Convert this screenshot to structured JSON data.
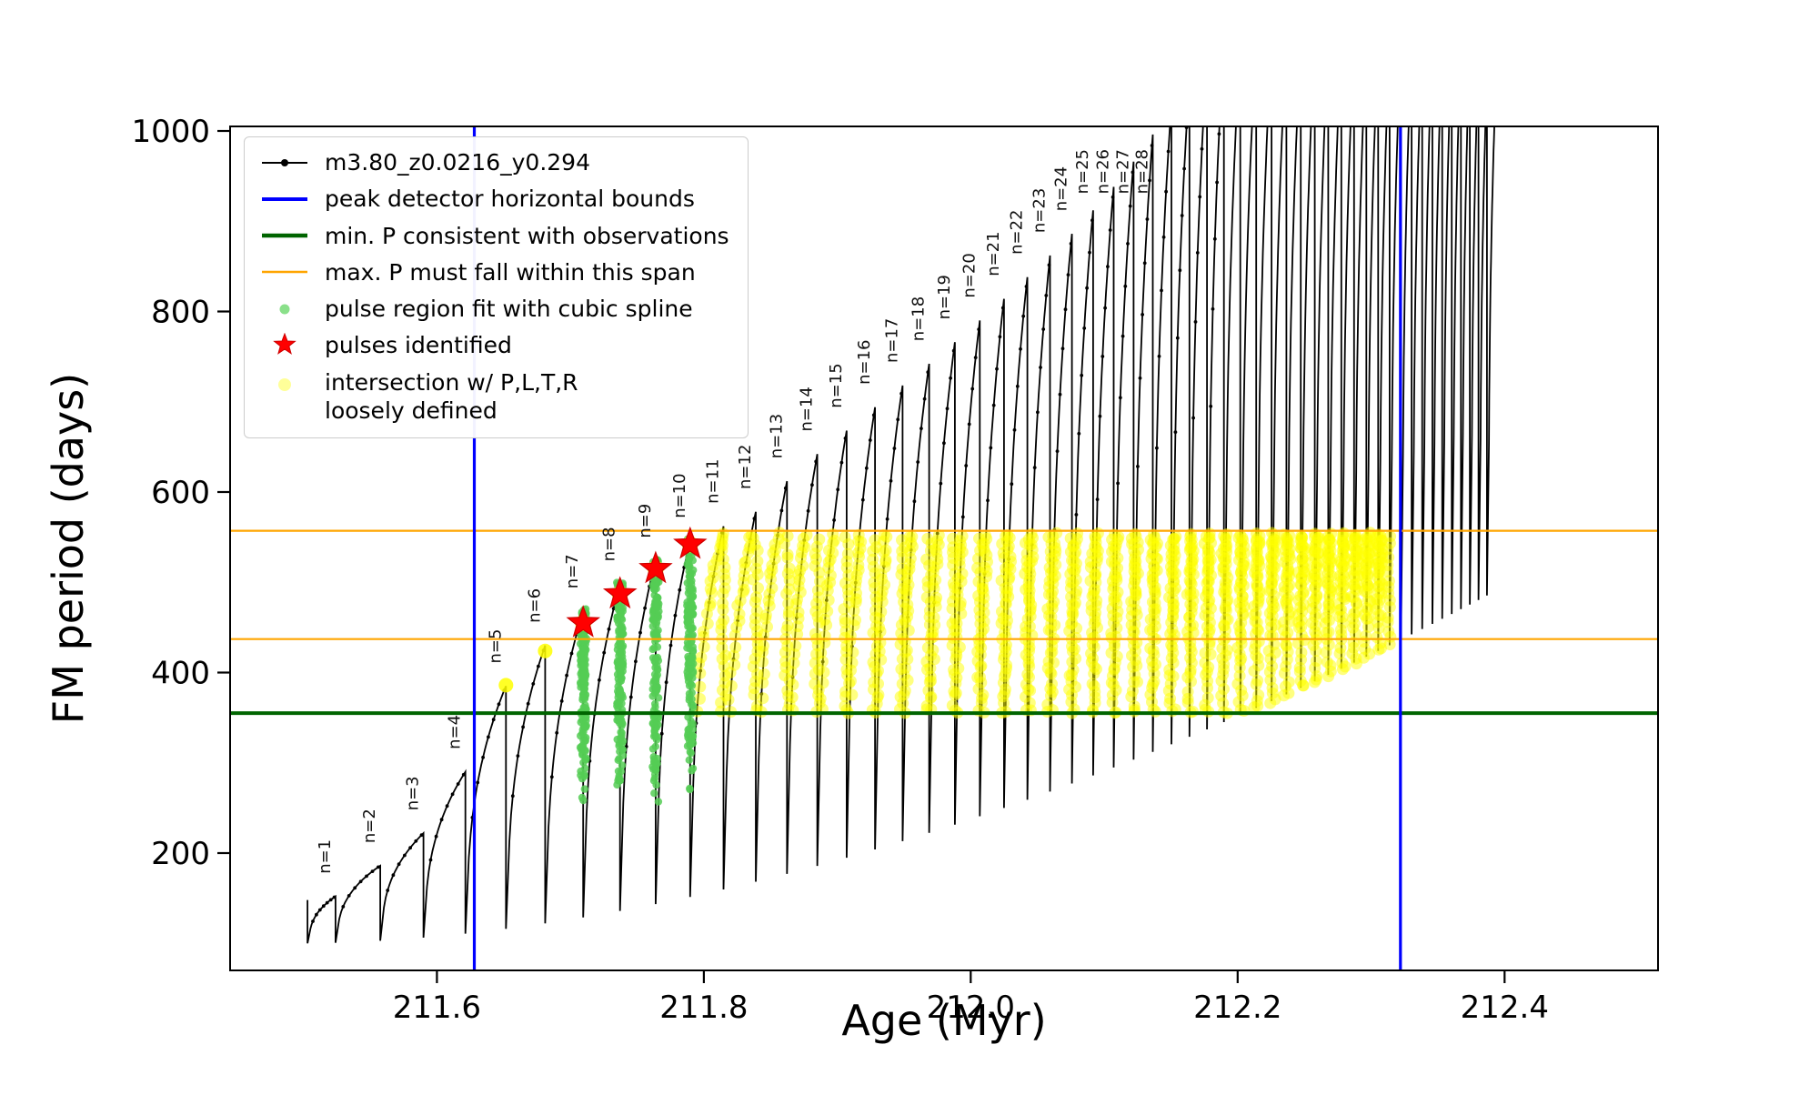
{
  "figure": {
    "background": "#ffffff"
  },
  "legend": {
    "items": [
      {
        "label": "m3.80_z0.0216_y0.294"
      },
      {
        "label": "peak detector horizontal bounds"
      },
      {
        "label": "min. P consistent with observations"
      },
      {
        "label": "max. P must fall within this span"
      },
      {
        "label": "pulse region fit with cubic spline"
      },
      {
        "label": "pulses identified"
      },
      {
        "label": "intersection w/ P,L,T,R\nloosely defined"
      }
    ]
  },
  "chart_data": {
    "type": "line",
    "title": "",
    "xlabel": "Age (Myr)",
    "ylabel": "FM period (days)",
    "xlim": [
      211.445,
      212.515
    ],
    "ylim": [
      70,
      1005
    ],
    "xticks": [
      211.6,
      211.8,
      212.0,
      212.2,
      212.4
    ],
    "yticks": [
      200,
      400,
      600,
      800,
      1000
    ],
    "grid": false,
    "legend_position": "upper-left",
    "series_name": "m3.80_z0.0216_y0.294",
    "colors": {
      "series": "#000000",
      "peak_bounds": "#0000ff",
      "min_p": "#006400",
      "max_p": "#ffa500",
      "pulse_fit": "#55cc55",
      "pulse_fit_legend": "#8ae08a",
      "pulses": "#ff0000",
      "intersection": "#ffff00",
      "intersection_legend": "#ffff99"
    },
    "peak_detector_bounds_x": [
      211.628,
      212.322
    ],
    "min_P_line_y": 355,
    "max_P_span_y": [
      437,
      557
    ],
    "pulses_format": "[n, age_Myr, peak_FM_period_days]; peaks above ylim are clipped at plot top",
    "pulses": [
      [
        0,
        211.503,
        148
      ],
      [
        1,
        211.524,
        152
      ],
      [
        2,
        211.5575,
        186
      ],
      [
        3,
        211.5899,
        222
      ],
      [
        4,
        211.6213,
        290
      ],
      [
        5,
        211.6517,
        385
      ],
      [
        6,
        211.6811,
        430
      ],
      [
        7,
        211.7096,
        468
      ],
      [
        8,
        211.7372,
        498
      ],
      [
        9,
        211.7639,
        524
      ],
      [
        10,
        211.7897,
        546
      ],
      [
        11,
        211.8147,
        562
      ],
      [
        12,
        211.8389,
        578
      ],
      [
        13,
        211.8623,
        612
      ],
      [
        14,
        211.885,
        642
      ],
      [
        15,
        211.907,
        668
      ],
      [
        16,
        211.9283,
        694
      ],
      [
        17,
        211.9489,
        718
      ],
      [
        18,
        211.9688,
        742
      ],
      [
        19,
        211.9881,
        766
      ],
      [
        20,
        212.0068,
        790
      ],
      [
        21,
        212.0249,
        814
      ],
      [
        22,
        212.0424,
        838
      ],
      [
        23,
        212.0594,
        862
      ],
      [
        24,
        212.0758,
        886
      ],
      [
        25,
        212.0917,
        912
      ],
      [
        26,
        212.1071,
        938
      ],
      [
        27,
        212.122,
        966
      ],
      [
        28,
        212.1364,
        996
      ],
      [
        29,
        212.1504,
        1030
      ],
      [
        30,
        212.1639,
        1058
      ],
      [
        31,
        212.177,
        1082
      ],
      [
        32,
        212.1897,
        1100
      ],
      [
        33,
        212.202,
        1100
      ],
      [
        34,
        212.2139,
        1100
      ],
      [
        35,
        212.2254,
        1100
      ],
      [
        36,
        212.2365,
        1100
      ],
      [
        37,
        212.2473,
        1100
      ],
      [
        38,
        212.2578,
        1100
      ],
      [
        39,
        212.2679,
        1100
      ],
      [
        40,
        212.2777,
        1100
      ],
      [
        41,
        212.2872,
        1100
      ],
      [
        42,
        212.2964,
        1100
      ],
      [
        43,
        212.3053,
        1100
      ],
      [
        44,
        212.3139,
        1100
      ],
      [
        45,
        212.3223,
        1100
      ],
      [
        46,
        212.3304,
        1100
      ],
      [
        47,
        212.3383,
        1100
      ],
      [
        48,
        212.3459,
        1100
      ],
      [
        49,
        212.3533,
        1100
      ],
      [
        50,
        212.3604,
        1100
      ],
      [
        51,
        212.3673,
        1100
      ],
      [
        52,
        212.374,
        1100
      ],
      [
        53,
        212.3805,
        1085
      ],
      [
        54,
        212.3868,
        1060
      ],
      [
        55,
        212.3929,
        1030
      ]
    ],
    "label_max_n": 28,
    "rise_power": 0.38,
    "dip_model": {
      "base": 100,
      "scale": 380,
      "x0": 211.5,
      "span": 0.88,
      "power": 1.8
    },
    "green_clusters": [
      {
        "x": 211.7096,
        "y_bottom": 245,
        "y_top": 470
      },
      {
        "x": 211.7372,
        "y_bottom": 248,
        "y_top": 500
      },
      {
        "x": 211.7639,
        "y_bottom": 252,
        "y_top": 526
      },
      {
        "x": 211.7897,
        "y_bottom": 255,
        "y_top": 548
      }
    ],
    "stars": [
      {
        "x": 211.7096,
        "y": 455
      },
      {
        "x": 211.7372,
        "y": 487
      },
      {
        "x": 211.7639,
        "y": 515
      },
      {
        "x": 211.7897,
        "y": 542
      }
    ],
    "yellow_band": {
      "y_min": 357,
      "y_max": 553,
      "x_min": 211.8,
      "x_max": 212.322
    },
    "yellow_peak_dots": [
      {
        "x": 211.6517,
        "y": 386
      },
      {
        "x": 211.6811,
        "y": 424
      }
    ]
  }
}
